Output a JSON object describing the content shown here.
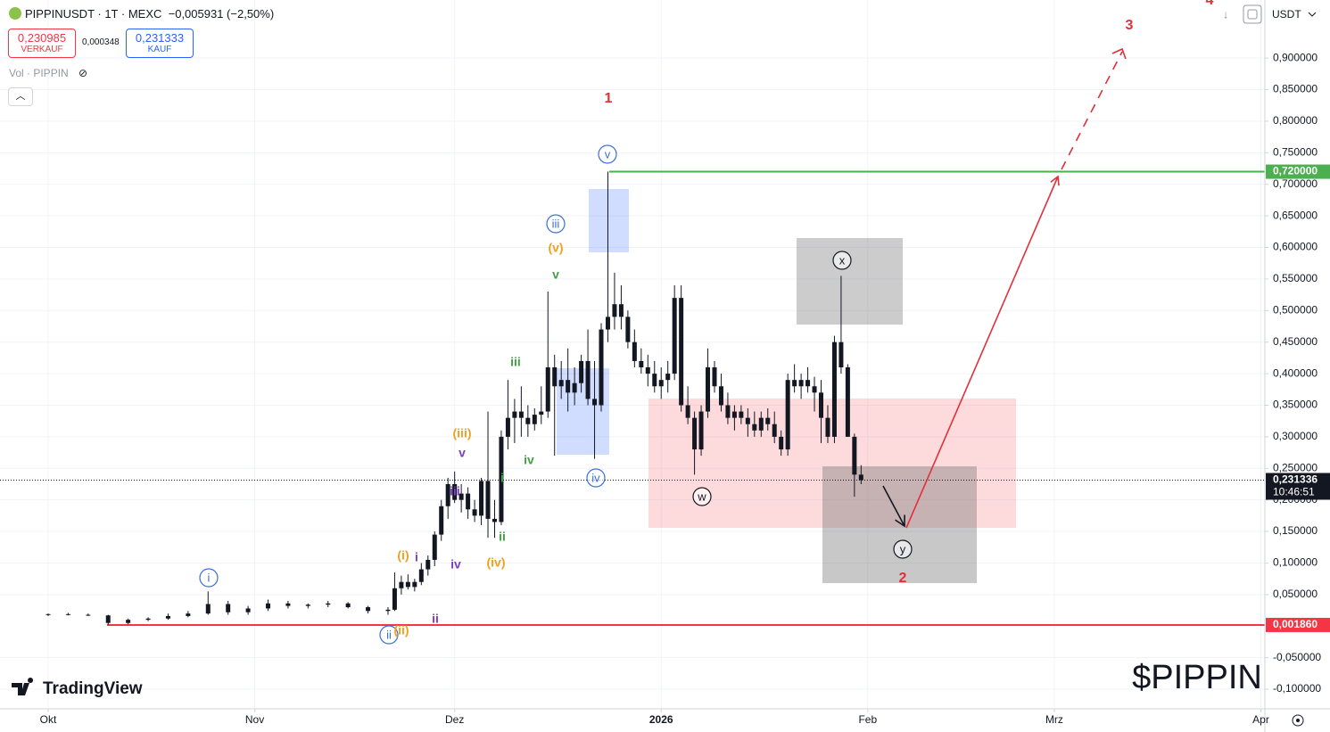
{
  "header": {
    "symbol": "PIPPINUSDT · 1T · MEXC",
    "change": "−0,005931 (−2,50%)",
    "sell_price": "0,230985",
    "sell_label": "VERKAUF",
    "spread": "0,000348",
    "buy_price": "0,231333",
    "buy_label": "KAUF",
    "volume_label": "Vol · PIPPIN",
    "currency": "USDT",
    "brand": "TradingView",
    "watermark": "$PIPPIN"
  },
  "chart_data": {
    "type": "candlestick",
    "x": [
      0,
      3,
      6,
      9,
      12,
      15,
      18,
      21,
      24,
      27,
      30,
      33,
      36,
      39,
      42,
      45,
      48,
      51,
      52,
      53,
      54,
      55,
      56,
      57,
      58,
      59,
      60,
      61,
      62,
      63,
      64,
      65,
      66,
      67,
      68,
      69,
      70,
      71,
      72,
      73,
      74,
      75,
      76,
      77,
      78,
      79,
      80,
      81,
      82,
      83,
      84,
      85,
      86,
      87,
      88,
      89,
      90,
      91,
      92,
      93,
      94,
      95,
      96,
      97,
      98,
      99,
      100,
      101,
      102,
      103,
      104,
      105,
      106,
      107,
      108,
      109,
      110,
      111,
      112,
      113,
      114,
      115,
      116,
      117,
      118,
      119,
      120,
      121,
      122
    ],
    "open": [
      0.018,
      0.019,
      0.018,
      0.017,
      0.005,
      0.01,
      0.012,
      0.016,
      0.02,
      0.035,
      0.022,
      0.028,
      0.036,
      0.032,
      0.034,
      0.036,
      0.03,
      0.024,
      0.026,
      0.06,
      0.07,
      0.062,
      0.07,
      0.09,
      0.105,
      0.145,
      0.19,
      0.225,
      0.2,
      0.21,
      0.185,
      0.175,
      0.23,
      0.17,
      0.165,
      0.3,
      0.33,
      0.34,
      0.33,
      0.32,
      0.335,
      0.34,
      0.41,
      0.38,
      0.39,
      0.37,
      0.385,
      0.42,
      0.36,
      0.35,
      0.47,
      0.49,
      0.51,
      0.49,
      0.45,
      0.42,
      0.41,
      0.4,
      0.38,
      0.39,
      0.4,
      0.52,
      0.35,
      0.33,
      0.28,
      0.34,
      0.41,
      0.38,
      0.35,
      0.33,
      0.34,
      0.33,
      0.32,
      0.31,
      0.33,
      0.32,
      0.3,
      0.28,
      0.39,
      0.38,
      0.39,
      0.38,
      0.37,
      0.33,
      0.3,
      0.45,
      0.41,
      0.3,
      0.24
    ],
    "high": [
      0.02,
      0.021,
      0.02,
      0.018,
      0.012,
      0.014,
      0.02,
      0.024,
      0.055,
      0.04,
      0.032,
      0.042,
      0.04,
      0.036,
      0.04,
      0.038,
      0.032,
      0.03,
      0.085,
      0.08,
      0.082,
      0.075,
      0.1,
      0.112,
      0.15,
      0.2,
      0.235,
      0.245,
      0.225,
      0.22,
      0.2,
      0.235,
      0.34,
      0.2,
      0.31,
      0.39,
      0.36,
      0.38,
      0.35,
      0.345,
      0.38,
      0.53,
      0.43,
      0.42,
      0.44,
      0.41,
      0.43,
      0.47,
      0.42,
      0.48,
      0.72,
      0.56,
      0.54,
      0.5,
      0.47,
      0.44,
      0.43,
      0.42,
      0.41,
      0.42,
      0.54,
      0.54,
      0.38,
      0.34,
      0.35,
      0.44,
      0.42,
      0.4,
      0.37,
      0.35,
      0.35,
      0.345,
      0.34,
      0.34,
      0.345,
      0.34,
      0.31,
      0.4,
      0.415,
      0.4,
      0.41,
      0.395,
      0.39,
      0.35,
      0.46,
      0.555,
      0.415,
      0.305,
      0.255
    ],
    "low": [
      0.016,
      0.017,
      0.016,
      0.002,
      0.003,
      0.008,
      0.01,
      0.014,
      0.018,
      0.018,
      0.018,
      0.024,
      0.028,
      0.028,
      0.03,
      0.028,
      0.02,
      0.018,
      0.024,
      0.05,
      0.058,
      0.055,
      0.065,
      0.08,
      0.095,
      0.135,
      0.17,
      0.195,
      0.18,
      0.17,
      0.165,
      0.16,
      0.14,
      0.14,
      0.16,
      0.28,
      0.29,
      0.3,
      0.3,
      0.31,
      0.32,
      0.33,
      0.27,
      0.36,
      0.34,
      0.35,
      0.37,
      0.35,
      0.265,
      0.34,
      0.45,
      0.47,
      0.47,
      0.44,
      0.41,
      0.4,
      0.38,
      0.37,
      0.36,
      0.37,
      0.39,
      0.34,
      0.32,
      0.24,
      0.27,
      0.33,
      0.37,
      0.34,
      0.32,
      0.31,
      0.32,
      0.3,
      0.3,
      0.3,
      0.31,
      0.29,
      0.27,
      0.27,
      0.37,
      0.36,
      0.37,
      0.34,
      0.29,
      0.29,
      0.29,
      0.4,
      0.3,
      0.205,
      0.225
    ],
    "close": [
      0.019,
      0.018,
      0.017,
      0.005,
      0.01,
      0.012,
      0.016,
      0.02,
      0.035,
      0.022,
      0.028,
      0.036,
      0.032,
      0.034,
      0.036,
      0.03,
      0.024,
      0.026,
      0.06,
      0.07,
      0.062,
      0.07,
      0.09,
      0.105,
      0.145,
      0.19,
      0.225,
      0.2,
      0.21,
      0.185,
      0.175,
      0.23,
      0.17,
      0.165,
      0.3,
      0.33,
      0.34,
      0.33,
      0.32,
      0.335,
      0.34,
      0.41,
      0.38,
      0.39,
      0.37,
      0.385,
      0.42,
      0.36,
      0.35,
      0.47,
      0.49,
      0.51,
      0.49,
      0.45,
      0.42,
      0.41,
      0.4,
      0.38,
      0.39,
      0.4,
      0.52,
      0.35,
      0.33,
      0.28,
      0.34,
      0.41,
      0.38,
      0.35,
      0.33,
      0.34,
      0.33,
      0.32,
      0.31,
      0.33,
      0.32,
      0.3,
      0.28,
      0.39,
      0.38,
      0.39,
      0.38,
      0.37,
      0.33,
      0.3,
      0.45,
      0.41,
      0.3,
      0.24,
      0.231336
    ],
    "up_color": "#131722",
    "down_color": "#131722",
    "xlim": [
      -7.23,
      182.6
    ],
    "xticks": [
      {
        "value": 0,
        "label": "Okt"
      },
      {
        "value": 31,
        "label": "Nov"
      },
      {
        "value": 61,
        "label": "Dez"
      },
      {
        "value": 92,
        "label": "2026"
      },
      {
        "value": 123,
        "label": "Feb"
      },
      {
        "value": 151,
        "label": "Mrz"
      },
      {
        "value": 182,
        "label": "Apr"
      }
    ],
    "ylim": [
      -0.131,
      0.992
    ],
    "yticks": [
      {
        "value": 0.9,
        "label": "0,900000"
      },
      {
        "value": 0.85,
        "label": "0,850000"
      },
      {
        "value": 0.8,
        "label": "0,800000"
      },
      {
        "value": 0.75,
        "label": "0,750000"
      },
      {
        "value": 0.7,
        "label": "0,700000"
      },
      {
        "value": 0.65,
        "label": "0,650000"
      },
      {
        "value": 0.6,
        "label": "0,600000"
      },
      {
        "value": 0.55,
        "label": "0,550000"
      },
      {
        "value": 0.5,
        "label": "0,500000"
      },
      {
        "value": 0.45,
        "label": "0,450000"
      },
      {
        "value": 0.4,
        "label": "0,400000"
      },
      {
        "value": 0.35,
        "label": "0,350000"
      },
      {
        "value": 0.3,
        "label": "0,300000"
      },
      {
        "value": 0.25,
        "label": "0,250000"
      },
      {
        "value": 0.2,
        "label": "0,200000"
      },
      {
        "value": 0.15,
        "label": "0,150000"
      },
      {
        "value": 0.1,
        "label": "0,100000"
      },
      {
        "value": 0.05,
        "label": "0,050000"
      },
      {
        "value": -0.05,
        "label": "-0,050000"
      },
      {
        "value": -0.1,
        "label": "-0,100000"
      }
    ],
    "grid": true,
    "hlines": [
      {
        "value": 0.72,
        "label": "0,720000",
        "color": "#4caf50"
      },
      {
        "value": 0.00186,
        "label": "0,001860",
        "color": "#f23645"
      }
    ],
    "last_price": {
      "value": 0.231336,
      "label": "0,231336",
      "countdown": "10:46:51"
    },
    "annotations": [
      {
        "text": "1",
        "color": "#e0303a",
        "circled": false
      },
      {
        "text": "2",
        "color": "#e0303a",
        "circled": false
      },
      {
        "text": "3",
        "color": "#e0303a",
        "circled": false
      },
      {
        "text": "4",
        "color": "#e0303a",
        "circled": false
      },
      {
        "text": "v",
        "color": "#3a6fd8",
        "circled": true
      },
      {
        "text": "iii",
        "color": "#3a6fd8",
        "circled": true
      },
      {
        "text": "iv",
        "color": "#3a6fd8",
        "circled": true
      },
      {
        "text": "i",
        "color": "#3a6fd8",
        "circled": true
      },
      {
        "text": "ii",
        "color": "#3a6fd8",
        "circled": true
      },
      {
        "text": "(v)",
        "color": "#f0a020",
        "circled": false
      },
      {
        "text": "(iii)",
        "color": "#f0a020",
        "circled": false
      },
      {
        "text": "(i)",
        "color": "#f0a020",
        "circled": false
      },
      {
        "text": "(iv)",
        "color": "#f0a020",
        "circled": false
      },
      {
        "text": "(ii)",
        "color": "#f0a020",
        "circled": false
      },
      {
        "text": "v",
        "color": "#43a047",
        "circled": false
      },
      {
        "text": "iii",
        "color": "#43a047",
        "circled": false
      },
      {
        "text": "iv",
        "color": "#43a047",
        "circled": false
      },
      {
        "text": "i",
        "color": "#43a047",
        "circled": false
      },
      {
        "text": "ii",
        "color": "#43a047",
        "circled": false
      },
      {
        "text": "v",
        "color": "#7b3fbf",
        "circled": false
      },
      {
        "text": "iii",
        "color": "#7b3fbf",
        "circled": false
      },
      {
        "text": "i",
        "color": "#7b3fbf",
        "circled": false
      },
      {
        "text": "iv",
        "color": "#7b3fbf",
        "circled": false
      },
      {
        "text": "ii",
        "color": "#7b3fbf",
        "circled": false
      },
      {
        "text": "w",
        "color": "#131722",
        "circled": true
      },
      {
        "text": "x",
        "color": "#131722",
        "circled": true
      },
      {
        "text": "y",
        "color": "#131722",
        "circled": true
      }
    ]
  }
}
